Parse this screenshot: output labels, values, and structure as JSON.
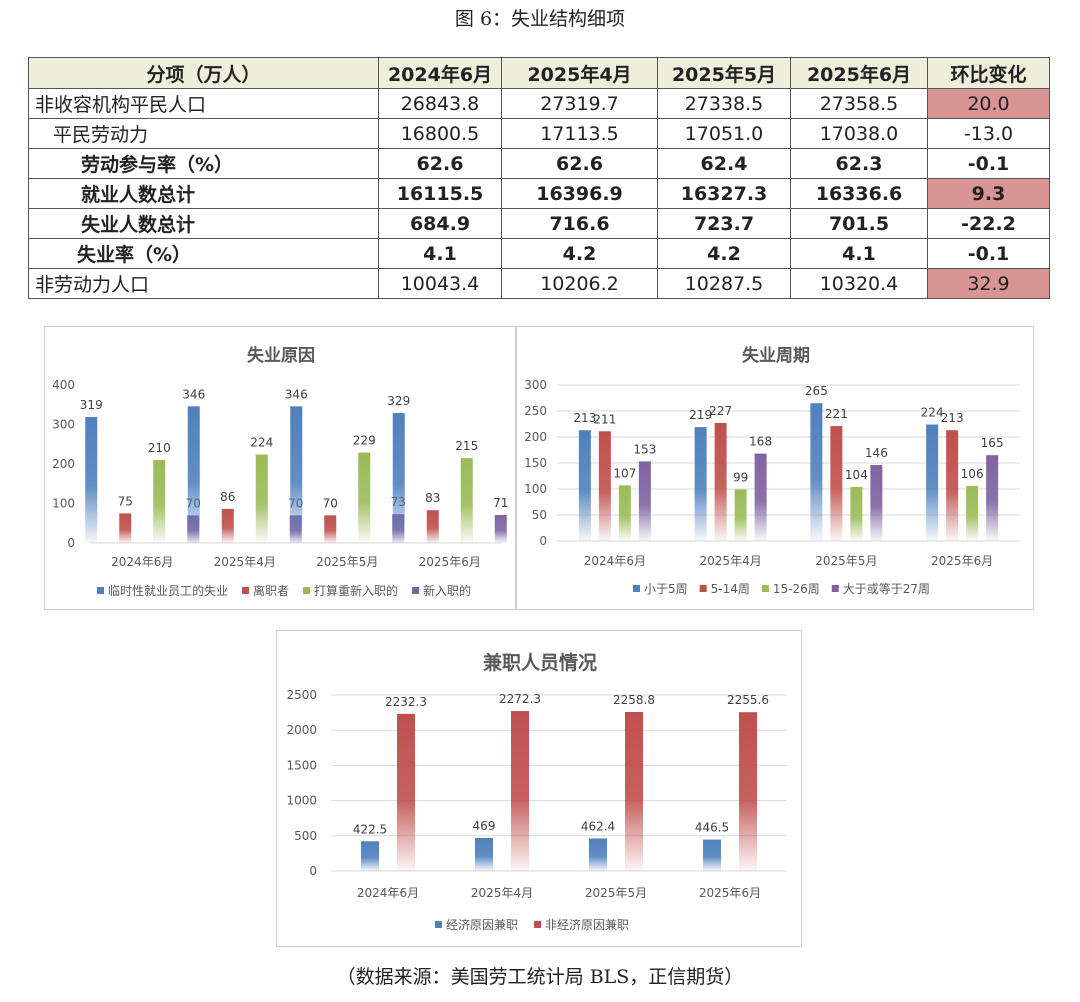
{
  "figure_title": "图 6：失业结构细项",
  "source_note": "（数据来源：美国劳工统计局 BLS，正信期货）",
  "table": {
    "headers": [
      "分项（万人）",
      "2024年6月",
      "2025年4月",
      "2025年5月",
      "2025年6月",
      "环比变化"
    ],
    "rows": [
      {
        "label": "非收容机构平民人口",
        "indent": 0,
        "bold": false,
        "values": [
          "26843.8",
          "27319.7",
          "27338.5",
          "27358.5"
        ],
        "change": "20.0",
        "highlight": true
      },
      {
        "label": "平民劳动力",
        "indent": 1,
        "bold": false,
        "values": [
          "16800.5",
          "17113.5",
          "17051.0",
          "17038.0"
        ],
        "change": "-13.0",
        "highlight": false
      },
      {
        "label": "劳动参与率（%）",
        "indent": 2,
        "bold": true,
        "values": [
          "62.6",
          "62.6",
          "62.4",
          "62.3"
        ],
        "change": "-0.1",
        "highlight": false
      },
      {
        "label": "就业人数总计",
        "indent": 2,
        "bold": true,
        "values": [
          "16115.5",
          "16396.9",
          "16327.3",
          "16336.6"
        ],
        "change": "9.3",
        "highlight": true
      },
      {
        "label": "失业人数总计",
        "indent": 2,
        "bold": true,
        "values": [
          "684.9",
          "716.6",
          "723.7",
          "701.5"
        ],
        "change": "-22.2",
        "highlight": false
      },
      {
        "label": "失业率（%）",
        "indent": 3,
        "bold": true,
        "values": [
          "4.1",
          "4.2",
          "4.2",
          "4.1"
        ],
        "change": "-0.1",
        "highlight": false
      },
      {
        "label": "非劳动力人口",
        "indent": 0,
        "bold": false,
        "values": [
          "10043.4",
          "10206.2",
          "10287.5",
          "10320.4"
        ],
        "change": "32.9",
        "highlight": true
      }
    ],
    "highlight_color": "#d99594",
    "header_bg": "#eeeedd"
  },
  "chart_data": [
    {
      "type": "bar",
      "title": "失业原因",
      "categories": [
        "2024年6月",
        "2025年4月",
        "2025年5月",
        "2025年6月"
      ],
      "ylim": [
        0,
        400
      ],
      "yticks": [
        0,
        100,
        200,
        300,
        400
      ],
      "legend_position": "bottom",
      "series": [
        {
          "name": "临时性就业员工的失业",
          "color": "#4f81bd",
          "values": [
            319,
            346,
            346,
            329
          ]
        },
        {
          "name": "离职者",
          "color": "#c0504d",
          "values": [
            75,
            86,
            70,
            83
          ]
        },
        {
          "name": "打算重新入职的",
          "color": "#9bbb59",
          "values": [
            210,
            224,
            229,
            215
          ]
        },
        {
          "name": "新入职的",
          "color": "#8064a2",
          "values": [
            70,
            70,
            73,
            71
          ]
        }
      ]
    },
    {
      "type": "bar",
      "title": "失业周期",
      "categories": [
        "2024年6月",
        "2025年4月",
        "2025年5月",
        "2025年6月"
      ],
      "ylim": [
        0,
        300
      ],
      "yticks": [
        0,
        50,
        100,
        150,
        200,
        250,
        300
      ],
      "grid": true,
      "legend_position": "bottom",
      "series": [
        {
          "name": "小于5周",
          "color": "#4f81bd",
          "values": [
            213,
            219,
            265,
            224
          ]
        },
        {
          "name": "5-14周",
          "color": "#c0504d",
          "values": [
            211,
            227,
            221,
            213
          ]
        },
        {
          "name": "15-26周",
          "color": "#9bbb59",
          "values": [
            107,
            99,
            104,
            106
          ]
        },
        {
          "name": "大于或等于27周",
          "color": "#8064a2",
          "values": [
            153,
            168,
            146,
            165
          ]
        }
      ]
    },
    {
      "type": "bar",
      "title": "兼职人员情况",
      "categories": [
        "2024年6月",
        "2025年4月",
        "2025年5月",
        "2025年6月"
      ],
      "ylim": [
        0,
        2500
      ],
      "yticks": [
        0,
        500,
        1000,
        1500,
        2000,
        2500
      ],
      "grid": true,
      "legend_position": "bottom",
      "series": [
        {
          "name": "经济原因兼职",
          "color": "#4f81bd",
          "values": [
            422.5,
            469,
            462.4,
            446.5
          ]
        },
        {
          "name": "非经济原因兼职",
          "color": "#c0504d",
          "values": [
            2232.3,
            2272.3,
            2258.8,
            2255.6
          ]
        }
      ]
    }
  ]
}
